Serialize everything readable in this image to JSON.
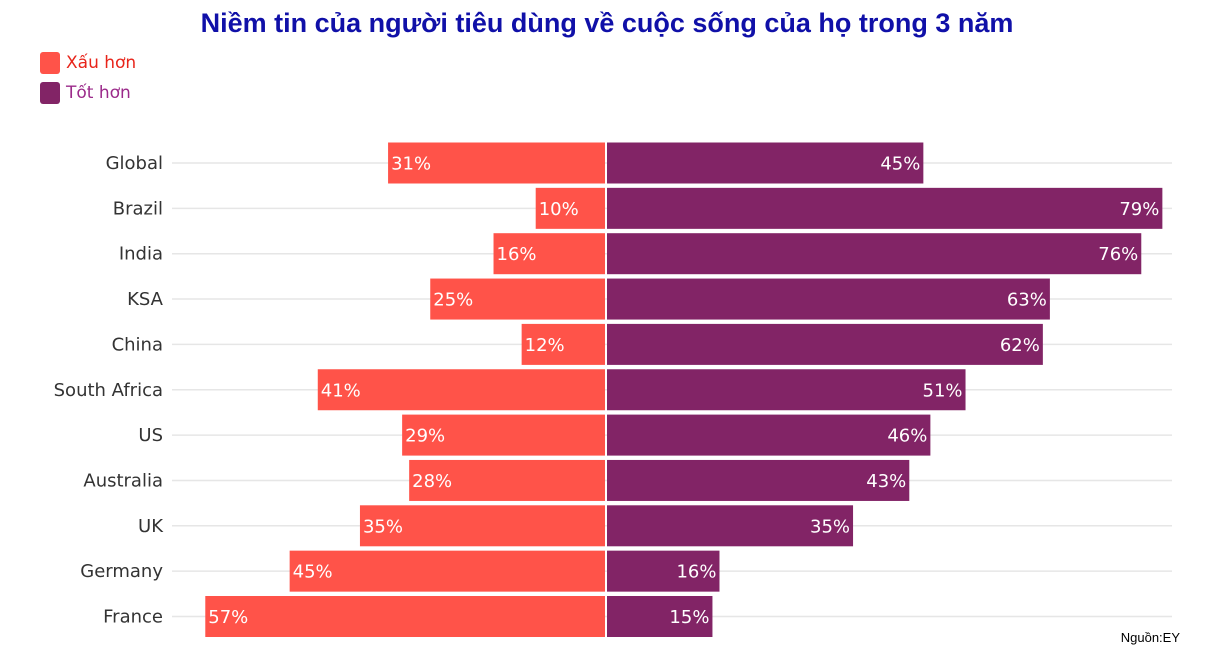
{
  "title": "Niềm tin của người tiêu dùng về cuộc sống của họ trong 3 năm",
  "source": "Nguồn:EY",
  "colors": {
    "worse": "#ff5349",
    "better": "#822466",
    "title": "#1010a8",
    "worse_text": "#e8241a",
    "better_text": "#9b2a8a",
    "grid": "#e6e6e6"
  },
  "chart_data": {
    "type": "bar",
    "orientation": "horizontal-diverging",
    "title": "Niềm tin của người tiêu dùng về cuộc sống của họ trong 3 năm",
    "categories": [
      "Global",
      "Brazil",
      "India",
      "KSA",
      "China",
      "South Africa",
      "US",
      "Australia",
      "UK",
      "Germany",
      "France"
    ],
    "series": [
      {
        "name": "Xấu hơn",
        "values": [
          31,
          10,
          16,
          25,
          12,
          41,
          29,
          28,
          35,
          45,
          57
        ],
        "direction": "left"
      },
      {
        "name": "Tốt hơn",
        "values": [
          45,
          79,
          76,
          63,
          62,
          51,
          46,
          43,
          35,
          16,
          15
        ],
        "direction": "right"
      }
    ],
    "value_format": "{v}%",
    "legend": "top-left",
    "grid": true
  }
}
